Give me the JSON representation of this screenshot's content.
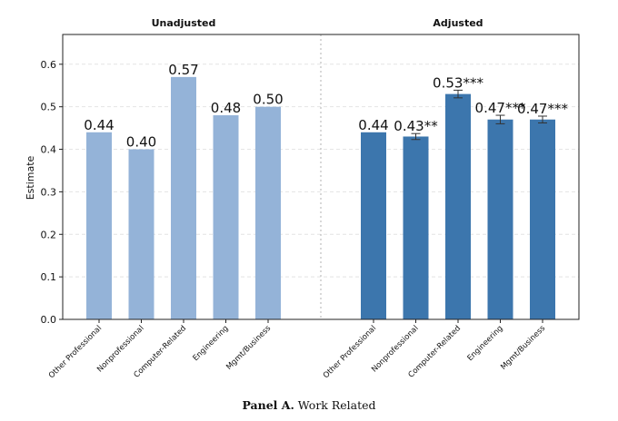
{
  "chart_data": {
    "type": "bar",
    "ylabel": "Estimate",
    "ylim": [
      0,
      0.67
    ],
    "yticks": [
      "0.0",
      "0.1",
      "0.2",
      "0.3",
      "0.4",
      "0.5",
      "0.6"
    ],
    "grid": true,
    "categories": [
      "Other Professional",
      "Nonprofessional",
      "Computer-Related",
      "Engineering",
      "Mgmt/Business"
    ],
    "groups": [
      {
        "title": "Unadjusted",
        "color": "#94b3d8",
        "values": [
          0.44,
          0.4,
          0.57,
          0.48,
          0.5
        ],
        "labels": [
          "0.44",
          "0.40",
          "0.57",
          "0.48",
          "0.50"
        ],
        "errors": [
          0,
          0,
          0,
          0,
          0
        ]
      },
      {
        "title": "Adjusted",
        "color": "#3c76ad",
        "values": [
          0.44,
          0.43,
          0.53,
          0.47,
          0.47
        ],
        "labels": [
          "0.44",
          "0.43**",
          "0.53***",
          "0.47***",
          "0.47***"
        ],
        "errors": [
          0,
          0.007,
          0.009,
          0.01,
          0.008
        ]
      }
    ]
  },
  "caption": {
    "panel": "Panel A.",
    "text": "Work Related"
  }
}
